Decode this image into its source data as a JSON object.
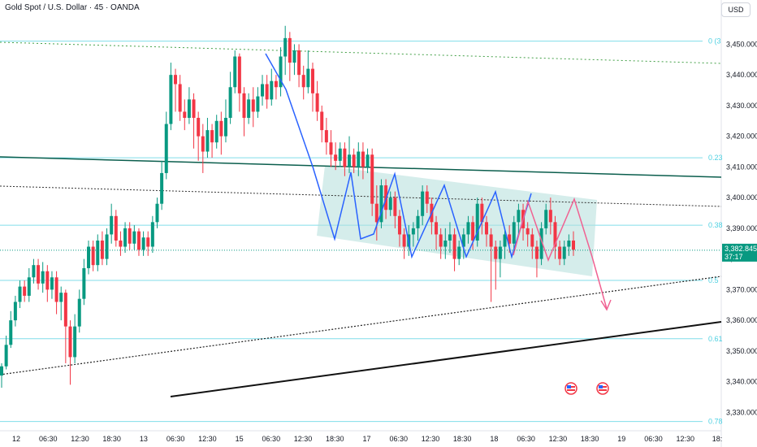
{
  "header": {
    "title": "Gold Spot / U.S. Dollar · 45 · OANDA",
    "currency_button": "USD"
  },
  "chart_data": {
    "type": "candlestick",
    "symbol": "Gold Spot / U.S. Dollar",
    "interval": "45",
    "source": "OANDA",
    "currency": "USD",
    "y_axis": {
      "ylim": [
        3324,
        3457
      ],
      "ticks": [
        3330,
        3340,
        3350,
        3360,
        3370,
        3380,
        3390,
        3400,
        3410,
        3420,
        3430,
        3440,
        3450
      ]
    },
    "x_axis": {
      "tick_labels": [
        "12",
        "06:30",
        "12:30",
        "18:30",
        "13",
        "06:30",
        "12:30",
        "15",
        "06:30",
        "12:30",
        "18:30",
        "17",
        "06:30",
        "12:30",
        "18:30",
        "18",
        "06:30",
        "12:30",
        "18:30",
        "19",
        "06:30",
        "12:30",
        "18:"
      ]
    },
    "last_price": {
      "value": "3,382.845",
      "countdown": "37:17",
      "color": "#089981"
    },
    "fib_levels": [
      {
        "label": "0 (3",
        "price": 3451
      },
      {
        "label": "0.23",
        "price": 3413
      },
      {
        "label": "0.38",
        "price": 3391
      },
      {
        "label": "0.5",
        "price": 3373
      },
      {
        "label": "0.61",
        "price": 3354
      },
      {
        "label": "0.78",
        "price": 3327
      }
    ],
    "colors": {
      "up": "#089981",
      "down": "#f23645",
      "fib": "#80deea",
      "channel": "#b2dfdb",
      "blue_path": "#2962ff",
      "red_path": "#f06292"
    },
    "candles": [
      [
        3342,
        3345,
        3338,
        3346
      ],
      [
        3345,
        3352,
        3344,
        3355
      ],
      [
        3352,
        3360,
        3351,
        3363
      ],
      [
        3360,
        3366,
        3358,
        3368
      ],
      [
        3366,
        3371,
        3364,
        3373
      ],
      [
        3371,
        3368,
        3366,
        3373
      ],
      [
        3368,
        3374,
        3366,
        3377
      ],
      [
        3374,
        3378,
        3372,
        3380
      ],
      [
        3378,
        3372,
        3370,
        3380
      ],
      [
        3372,
        3376,
        3369,
        3379
      ],
      [
        3376,
        3370,
        3366,
        3378
      ],
      [
        3370,
        3374,
        3367,
        3376
      ],
      [
        3374,
        3366,
        3362,
        3376
      ],
      [
        3366,
        3369,
        3360,
        3371
      ],
      [
        3369,
        3358,
        3346,
        3370
      ],
      [
        3358,
        3348,
        3339,
        3360
      ],
      [
        3348,
        3358,
        3346,
        3362
      ],
      [
        3358,
        3367,
        3356,
        3370
      ],
      [
        3367,
        3377,
        3365,
        3380
      ],
      [
        3377,
        3384,
        3375,
        3386
      ],
      [
        3384,
        3378,
        3376,
        3386
      ],
      [
        3378,
        3386,
        3376,
        3388
      ],
      [
        3386,
        3380,
        3378,
        3389
      ],
      [
        3380,
        3388,
        3378,
        3390
      ],
      [
        3388,
        3394,
        3385,
        3398
      ],
      [
        3394,
        3386,
        3384,
        3396
      ],
      [
        3386,
        3384,
        3381,
        3389
      ],
      [
        3384,
        3390,
        3382,
        3392
      ],
      [
        3390,
        3385,
        3383,
        3392
      ],
      [
        3385,
        3389,
        3383,
        3391
      ],
      [
        3389,
        3383,
        3381,
        3390
      ],
      [
        3383,
        3387,
        3381,
        3389
      ],
      [
        3387,
        3384,
        3381,
        3389
      ],
      [
        3384,
        3392,
        3382,
        3394
      ],
      [
        3392,
        3398,
        3390,
        3400
      ],
      [
        3398,
        3408,
        3396,
        3412
      ],
      [
        3408,
        3424,
        3406,
        3428
      ],
      [
        3424,
        3440,
        3422,
        3444
      ],
      [
        3440,
        3437,
        3428,
        3442
      ],
      [
        3437,
        3428,
        3425,
        3440
      ],
      [
        3428,
        3426,
        3422,
        3432
      ],
      [
        3426,
        3432,
        3424,
        3436
      ],
      [
        3432,
        3426,
        3416,
        3434
      ],
      [
        3426,
        3420,
        3412,
        3428
      ],
      [
        3420,
        3415,
        3408,
        3424
      ],
      [
        3415,
        3422,
        3413,
        3426
      ],
      [
        3422,
        3418,
        3413,
        3424
      ],
      [
        3418,
        3425,
        3416,
        3427
      ],
      [
        3425,
        3420,
        3414,
        3428
      ],
      [
        3420,
        3426,
        3418,
        3432
      ],
      [
        3426,
        3436,
        3424,
        3441
      ],
      [
        3436,
        3446,
        3434,
        3448
      ],
      [
        3446,
        3434,
        3428,
        3447
      ],
      [
        3434,
        3426,
        3420,
        3436
      ],
      [
        3426,
        3432,
        3424,
        3434
      ],
      [
        3432,
        3428,
        3423,
        3436
      ],
      [
        3428,
        3433,
        3426,
        3436
      ],
      [
        3433,
        3437,
        3430,
        3440
      ],
      [
        3437,
        3432,
        3429,
        3440
      ],
      [
        3432,
        3438,
        3430,
        3442
      ],
      [
        3438,
        3436,
        3432,
        3440
      ],
      [
        3436,
        3446,
        3433,
        3449
      ],
      [
        3446,
        3452,
        3440,
        3456
      ],
      [
        3452,
        3444,
        3438,
        3454
      ],
      [
        3444,
        3448,
        3440,
        3450
      ],
      [
        3448,
        3440,
        3436,
        3450
      ],
      [
        3440,
        3436,
        3432,
        3443
      ],
      [
        3436,
        3442,
        3434,
        3448
      ],
      [
        3442,
        3434,
        3428,
        3444
      ],
      [
        3434,
        3428,
        3425,
        3438
      ],
      [
        3428,
        3422,
        3418,
        3430
      ],
      [
        3422,
        3418,
        3414,
        3426
      ],
      [
        3418,
        3414,
        3410,
        3422
      ],
      [
        3414,
        3412,
        3409,
        3418
      ],
      [
        3412,
        3416,
        3410,
        3418
      ],
      [
        3416,
        3410,
        3407,
        3418
      ],
      [
        3410,
        3414,
        3408,
        3420
      ],
      [
        3414,
        3410,
        3408,
        3416
      ],
      [
        3410,
        3415,
        3407,
        3418
      ],
      [
        3415,
        3410,
        3406,
        3418
      ],
      [
        3410,
        3414,
        3408,
        3416
      ],
      [
        3414,
        3398,
        3394,
        3416
      ],
      [
        3398,
        3392,
        3386,
        3404
      ],
      [
        3392,
        3404,
        3390,
        3406
      ],
      [
        3404,
        3396,
        3393,
        3406
      ],
      [
        3396,
        3400,
        3394,
        3402
      ],
      [
        3400,
        3394,
        3390,
        3402
      ],
      [
        3394,
        3388,
        3384,
        3396
      ],
      [
        3388,
        3384,
        3380,
        3390
      ],
      [
        3384,
        3388,
        3381,
        3391
      ],
      [
        3388,
        3390,
        3384,
        3392
      ],
      [
        3390,
        3394,
        3386,
        3396
      ],
      [
        3394,
        3402,
        3391,
        3404
      ],
      [
        3402,
        3398,
        3395,
        3404
      ],
      [
        3398,
        3392,
        3388,
        3400
      ],
      [
        3392,
        3388,
        3383,
        3394
      ],
      [
        3388,
        3384,
        3380,
        3390
      ],
      [
        3384,
        3386,
        3380,
        3390
      ],
      [
        3386,
        3388,
        3382,
        3392
      ],
      [
        3388,
        3380,
        3376,
        3390
      ],
      [
        3380,
        3384,
        3378,
        3386
      ],
      [
        3384,
        3388,
        3380,
        3390
      ],
      [
        3388,
        3392,
        3385,
        3394
      ],
      [
        3392,
        3386,
        3383,
        3394
      ],
      [
        3386,
        3398,
        3384,
        3400
      ],
      [
        3398,
        3392,
        3388,
        3400
      ],
      [
        3392,
        3388,
        3384,
        3394
      ],
      [
        3388,
        3384,
        3366,
        3390
      ],
      [
        3384,
        3380,
        3370,
        3386
      ],
      [
        3380,
        3384,
        3374,
        3386
      ],
      [
        3384,
        3388,
        3380,
        3390
      ],
      [
        3388,
        3385,
        3382,
        3391
      ],
      [
        3385,
        3392,
        3383,
        3394
      ],
      [
        3392,
        3396,
        3388,
        3398
      ],
      [
        3396,
        3390,
        3386,
        3398
      ],
      [
        3390,
        3388,
        3384,
        3392
      ],
      [
        3388,
        3384,
        3380,
        3390
      ],
      [
        3384,
        3380,
        3374,
        3386
      ],
      [
        3380,
        3390,
        3378,
        3392
      ],
      [
        3390,
        3396,
        3388,
        3398
      ],
      [
        3396,
        3392,
        3388,
        3400
      ],
      [
        3392,
        3384,
        3380,
        3394
      ],
      [
        3384,
        3380,
        3378,
        3386
      ],
      [
        3380,
        3384,
        3378,
        3386
      ],
      [
        3384,
        3386,
        3381,
        3388
      ],
      [
        3386,
        3383,
        3381,
        3389
      ]
    ]
  }
}
